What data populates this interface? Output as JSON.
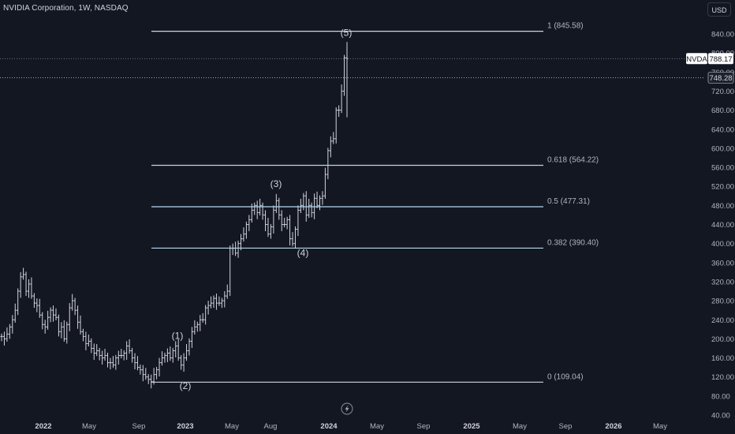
{
  "header": {
    "symbol_title": "NVIDIA Corporation, 1W, NASDAQ",
    "currency_button": "USD"
  },
  "price_tags": {
    "symbol": "NVDA",
    "last_price": "788.17",
    "crosshair_price": "748.28"
  },
  "colors": {
    "background": "#131722",
    "bars": "#d1d4dc",
    "fib_line": "#d1d4dc",
    "fib_line_mid": "#b7d6ef",
    "axis_text": "#b2b5be",
    "tag_bg": "#1e222d"
  },
  "icons": {
    "logo": "lightning-bolt-icon"
  },
  "chart_data": {
    "type": "ohlc-bar",
    "symbol": "NVDA",
    "interval": "1W",
    "exchange": "NASDAQ",
    "ylim": [
      40,
      880
    ],
    "y_ticks": [
      "840.00",
      "800.00",
      "760.00",
      "720.00",
      "680.00",
      "640.00",
      "600.00",
      "560.00",
      "520.00",
      "480.00",
      "440.00",
      "400.00",
      "360.00",
      "320.00",
      "280.00",
      "240.00",
      "200.00",
      "160.00",
      "120.00",
      "80.00",
      "40.00"
    ],
    "x_ticks": [
      {
        "label": "2022",
        "bold": true
      },
      {
        "label": "May",
        "bold": false
      },
      {
        "label": "Sep",
        "bold": false
      },
      {
        "label": "2023",
        "bold": true
      },
      {
        "label": "May",
        "bold": false
      },
      {
        "label": "Aug",
        "bold": false
      },
      {
        "label": "2024",
        "bold": true
      },
      {
        "label": "May",
        "bold": false
      },
      {
        "label": "Sep",
        "bold": false
      },
      {
        "label": "2025",
        "bold": true
      },
      {
        "label": "May",
        "bold": false
      },
      {
        "label": "Sep",
        "bold": false
      },
      {
        "label": "2026",
        "bold": true
      },
      {
        "label": "May",
        "bold": false
      }
    ],
    "fib_levels": [
      {
        "label": "1 (845.58)",
        "value": 845.58
      },
      {
        "label": "0.618 (564.22)",
        "value": 564.22
      },
      {
        "label": "0.5 (477.31)",
        "value": 477.31
      },
      {
        "label": "0.382 (390.40)",
        "value": 390.4
      },
      {
        "label": "0 (109.04)",
        "value": 109.04
      }
    ],
    "waves": [
      {
        "label": "(1)",
        "value": 183
      },
      {
        "label": "(2)",
        "value": 108
      },
      {
        "label": "(3)",
        "value": 502
      },
      {
        "label": "(4)",
        "value": 400
      },
      {
        "label": "(5)",
        "value": 823
      }
    ],
    "weekly_closes": [
      205,
      200,
      210,
      225,
      240,
      260,
      300,
      330,
      335,
      300,
      315,
      290,
      275,
      270,
      250,
      230,
      225,
      245,
      260,
      250,
      245,
      215,
      225,
      200,
      230,
      265,
      280,
      260,
      235,
      215,
      205,
      190,
      195,
      180,
      170,
      175,
      165,
      160,
      165,
      150,
      150,
      145,
      160,
      165,
      165,
      170,
      185,
      175,
      160,
      150,
      140,
      135,
      125,
      120,
      115,
      110,
      125,
      135,
      150,
      160,
      165,
      170,
      160,
      175,
      185,
      160,
      145,
      160,
      175,
      195,
      215,
      225,
      230,
      240,
      240,
      265,
      270,
      275,
      285,
      275,
      275,
      280,
      290,
      300,
      390,
      390,
      380,
      400,
      410,
      420,
      440,
      450,
      470,
      480,
      465,
      480,
      460,
      440,
      420,
      435,
      470,
      490,
      460,
      440,
      440,
      450,
      410,
      400,
      430,
      470,
      480,
      500,
      460,
      480,
      465,
      495,
      480,
      495,
      500,
      545,
      595,
      615,
      620,
      680,
      680,
      720,
      790,
      788
    ]
  }
}
